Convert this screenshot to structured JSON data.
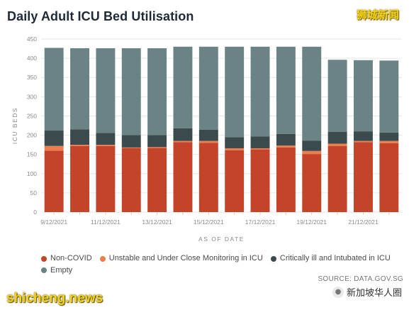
{
  "title": "Daily Adult ICU Bed Utilisation",
  "watermark_top": "狮城新闻",
  "source": "SOURCE: DATA.GOV.SG",
  "watermark_bottom_left": "shicheng.news",
  "watermark_bottom_right": "新加坡华人圈",
  "colors": {
    "non_covid": "#c4442a",
    "unstable": "#ec7d4c",
    "critical": "#3b4a4d",
    "empty": "#6a8384"
  },
  "chart_data": {
    "type": "bar",
    "stacked": true,
    "xlabel": "AS OF DATE",
    "ylabel": "ICU BEDS",
    "ylim": [
      0,
      450
    ],
    "yticks": [
      0,
      50,
      100,
      150,
      200,
      250,
      300,
      350,
      400,
      450
    ],
    "grid": true,
    "legend_position": "bottom",
    "categories": [
      "9/12/2021",
      "10/12/2021",
      "11/12/2021",
      "12/12/2021",
      "13/12/2021",
      "14/12/2021",
      "15/12/2021",
      "16/12/2021",
      "17/12/2021",
      "18/12/2021",
      "19/12/2021",
      "20/12/2021",
      "21/12/2021",
      "22/12/2021"
    ],
    "tick_labels": [
      "9/12/2021",
      "",
      "11/12/2021",
      "",
      "13/12/2021",
      "",
      "15/12/2021",
      "",
      "17/12/2021",
      "",
      "19/12/2021",
      "",
      "21/12/2021",
      ""
    ],
    "series": [
      {
        "name": "Non-COVID",
        "color_key": "non_covid",
        "values": [
          160,
          172,
          172,
          166,
          166,
          182,
          180,
          161,
          163,
          168,
          151,
          172,
          182,
          179
        ]
      },
      {
        "name": "Unstable and Under Close Monitoring in ICU",
        "color_key": "unstable",
        "values": [
          12,
          3,
          3,
          2,
          3,
          3,
          5,
          5,
          3,
          5,
          8,
          6,
          3,
          6
        ]
      },
      {
        "name": "Critically ill and Intubated in ICU",
        "color_key": "critical",
        "values": [
          40,
          40,
          31,
          32,
          31,
          33,
          29,
          29,
          31,
          30,
          27,
          31,
          25,
          22
        ]
      },
      {
        "name": "Empty",
        "color_key": "empty",
        "values": [
          215,
          211,
          220,
          226,
          226,
          212,
          216,
          235,
          233,
          227,
          244,
          187,
          185,
          187
        ]
      }
    ]
  }
}
